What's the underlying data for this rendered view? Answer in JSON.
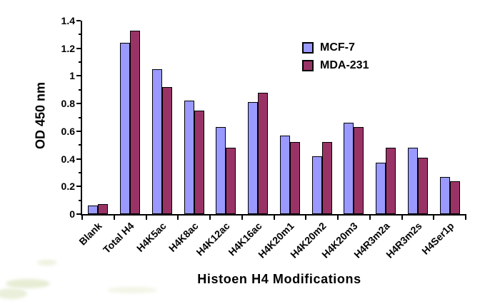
{
  "chart_data": {
    "type": "bar",
    "title": "",
    "xlabel": "Histoen H4 Modifications",
    "ylabel": "OD 450 nm",
    "ylim": [
      0,
      1.4
    ],
    "ytick_step": 0.2,
    "minor_tick_step": 0.1,
    "grid": false,
    "legend_position": "upper-right-inside",
    "axis_color": "#000000",
    "text_color": "#000000",
    "bar_border_color": "#000000",
    "categories": [
      "Blank",
      "Total H4",
      "H4K5ac",
      "H4K8ac",
      "H4K12ac",
      "H4K16ac",
      "H4K20m1",
      "H4K20m2",
      "H4K20m3",
      "H4R3m2a",
      "H4R3m2s",
      "H4Ser1p"
    ],
    "yticks": [
      {
        "label": "0",
        "value": 0
      },
      {
        "label": "0.2",
        "value": 0.2
      },
      {
        "label": "0.4",
        "value": 0.4
      },
      {
        "label": "0.6",
        "value": 0.6
      },
      {
        "label": "0.8",
        "value": 0.8
      },
      {
        "label": "1",
        "value": 1
      },
      {
        "label": "1.2",
        "value": 1.2
      },
      {
        "label": "1.4",
        "value": 1.4
      }
    ],
    "series": [
      {
        "name": "MCF-7",
        "color": "#9999FF",
        "values": [
          0.06,
          1.24,
          1.05,
          0.82,
          0.63,
          0.81,
          0.57,
          0.42,
          0.66,
          0.37,
          0.48,
          0.27
        ]
      },
      {
        "name": "MDA-231",
        "color": "#993366",
        "values": [
          0.07,
          1.33,
          0.92,
          0.75,
          0.48,
          0.88,
          0.52,
          0.52,
          0.63,
          0.48,
          0.41,
          0.24
        ]
      }
    ]
  }
}
